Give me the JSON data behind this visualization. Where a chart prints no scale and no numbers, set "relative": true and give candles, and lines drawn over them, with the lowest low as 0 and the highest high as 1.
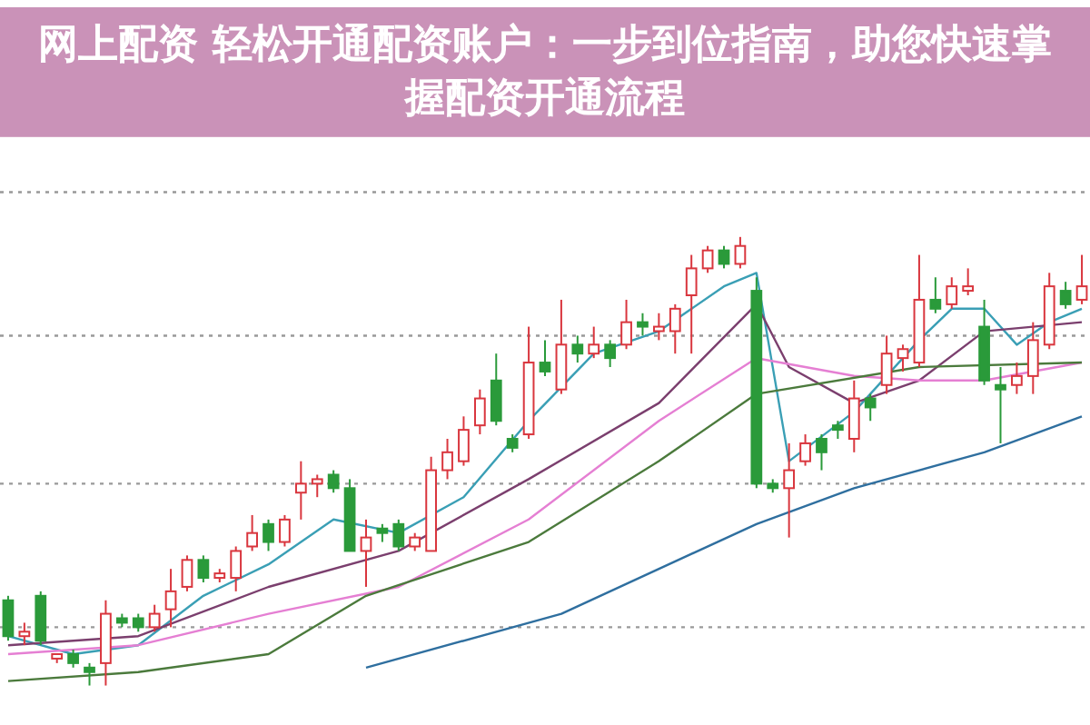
{
  "chart_data": {
    "type": "candlestick",
    "relative": true,
    "title": "网上配资 轻松开通配资账户：一步到位指南，助您快速掌握配资开通流程",
    "categories": [
      null,
      null,
      null,
      null,
      null,
      null,
      null,
      null,
      null,
      null,
      null,
      null,
      null,
      null,
      null,
      null,
      null,
      null,
      null,
      null,
      null,
      null,
      null,
      null,
      null,
      null,
      null,
      null,
      null,
      null,
      null,
      null,
      null,
      null,
      null,
      null,
      null,
      null,
      null,
      null,
      null,
      null,
      null,
      null,
      null,
      null,
      null,
      null,
      null,
      null,
      null,
      null,
      null,
      null,
      null,
      null,
      null,
      null,
      null,
      null,
      null,
      null,
      null,
      null,
      null,
      null,
      null
    ],
    "ohlc": [
      [
        0.19,
        0.2,
        0.1,
        0.11
      ],
      [
        0.11,
        0.14,
        0.09,
        0.12
      ],
      [
        0.2,
        0.21,
        0.09,
        0.1
      ],
      [
        0.06,
        0.07,
        0.05,
        0.07
      ],
      [
        0.07,
        0.08,
        0.04,
        0.05
      ],
      [
        0.04,
        0.05,
        0.0,
        0.03
      ],
      [
        0.05,
        0.19,
        0.0,
        0.16
      ],
      [
        0.15,
        0.16,
        0.13,
        0.14
      ],
      [
        0.15,
        0.16,
        0.12,
        0.13
      ],
      [
        0.13,
        0.18,
        0.12,
        0.16
      ],
      [
        0.17,
        0.26,
        0.13,
        0.21
      ],
      [
        0.22,
        0.29,
        0.21,
        0.28
      ],
      [
        0.28,
        0.29,
        0.23,
        0.24
      ],
      [
        0.24,
        0.26,
        0.23,
        0.25
      ],
      [
        0.24,
        0.31,
        0.21,
        0.3
      ],
      [
        0.31,
        0.38,
        0.3,
        0.34
      ],
      [
        0.36,
        0.37,
        0.3,
        0.32
      ],
      [
        0.32,
        0.38,
        0.31,
        0.37
      ],
      [
        0.43,
        0.5,
        0.37,
        0.45
      ],
      [
        0.45,
        0.47,
        0.42,
        0.46
      ],
      [
        0.47,
        0.48,
        0.43,
        0.44
      ],
      [
        0.44,
        0.46,
        0.3,
        0.3
      ],
      [
        0.3,
        0.37,
        0.22,
        0.33
      ],
      [
        0.35,
        0.36,
        0.32,
        0.34
      ],
      [
        0.36,
        0.37,
        0.3,
        0.31
      ],
      [
        0.31,
        0.34,
        0.3,
        0.33
      ],
      [
        0.3,
        0.51,
        0.3,
        0.48
      ],
      [
        0.48,
        0.55,
        0.46,
        0.52
      ],
      [
        0.5,
        0.6,
        0.49,
        0.57
      ],
      [
        0.58,
        0.66,
        0.56,
        0.64
      ],
      [
        0.68,
        0.74,
        0.58,
        0.59
      ],
      [
        0.55,
        0.56,
        0.52,
        0.53
      ],
      [
        0.56,
        0.8,
        0.55,
        0.72
      ],
      [
        0.72,
        0.77,
        0.69,
        0.7
      ],
      [
        0.66,
        0.86,
        0.65,
        0.76
      ],
      [
        0.76,
        0.78,
        0.72,
        0.74
      ],
      [
        0.74,
        0.8,
        0.73,
        0.76
      ],
      [
        0.76,
        0.77,
        0.71,
        0.73
      ],
      [
        0.76,
        0.86,
        0.75,
        0.81
      ],
      [
        0.81,
        0.83,
        0.78,
        0.8
      ],
      [
        0.79,
        0.83,
        0.77,
        0.8
      ],
      [
        0.79,
        0.85,
        0.74,
        0.84
      ],
      [
        0.87,
        0.96,
        0.74,
        0.93
      ],
      [
        0.93,
        0.98,
        0.92,
        0.97
      ],
      [
        0.97,
        0.98,
        0.93,
        0.94
      ],
      [
        0.94,
        1.0,
        0.93,
        0.98
      ],
      [
        0.88,
        0.91,
        0.44,
        0.45
      ],
      [
        0.45,
        0.46,
        0.43,
        0.44
      ],
      [
        0.44,
        0.54,
        0.33,
        0.48
      ],
      [
        0.5,
        0.56,
        0.49,
        0.54
      ],
      [
        0.55,
        0.56,
        0.48,
        0.52
      ],
      [
        0.58,
        0.59,
        0.55,
        0.57
      ],
      [
        0.55,
        0.68,
        0.52,
        0.64
      ],
      [
        0.64,
        0.65,
        0.59,
        0.62
      ],
      [
        0.67,
        0.78,
        0.65,
        0.74
      ],
      [
        0.73,
        0.76,
        0.7,
        0.75
      ],
      [
        0.72,
        0.96,
        0.71,
        0.86
      ],
      [
        0.86,
        0.91,
        0.83,
        0.84
      ],
      [
        0.85,
        0.91,
        0.84,
        0.89
      ],
      [
        0.88,
        0.93,
        0.87,
        0.89
      ],
      [
        0.8,
        0.86,
        0.67,
        0.68
      ],
      [
        0.67,
        0.71,
        0.54,
        0.66
      ],
      [
        0.67,
        0.72,
        0.65,
        0.69
      ],
      [
        0.69,
        0.81,
        0.65,
        0.77
      ],
      [
        0.76,
        0.92,
        0.75,
        0.89
      ],
      [
        0.88,
        0.9,
        0.84,
        0.85
      ],
      [
        0.86,
        0.96,
        0.85,
        0.89
      ]
    ],
    "colors": [
      "#2a9a3a",
      "#d9363e",
      "#2a9a3a",
      "#d9363e",
      "#2a9a3a",
      "#2a9a3a",
      "#d9363e",
      "#2a9a3a",
      "#2a9a3a",
      "#d9363e",
      "#d9363e",
      "#d9363e",
      "#2a9a3a",
      "#d9363e",
      "#d9363e",
      "#d9363e",
      "#2a9a3a",
      "#d9363e",
      "#d9363e",
      "#d9363e",
      "#2a9a3a",
      "#2a9a3a",
      "#d9363e",
      "#2a9a3a",
      "#2a9a3a",
      "#d9363e",
      "#d9363e",
      "#d9363e",
      "#d9363e",
      "#d9363e",
      "#2a9a3a",
      "#2a9a3a",
      "#d9363e",
      "#2a9a3a",
      "#d9363e",
      "#2a9a3a",
      "#d9363e",
      "#2a9a3a",
      "#d9363e",
      "#2a9a3a",
      "#d9363e",
      "#d9363e",
      "#d9363e",
      "#d9363e",
      "#2a9a3a",
      "#d9363e",
      "#2a9a3a",
      "#2a9a3a",
      "#d9363e",
      "#d9363e",
      "#2a9a3a",
      "#2a9a3a",
      "#d9363e",
      "#2a9a3a",
      "#d9363e",
      "#d9363e",
      "#d9363e",
      "#2a9a3a",
      "#d9363e",
      "#d9363e",
      "#2a9a3a",
      "#2a9a3a",
      "#d9363e",
      "#d9363e",
      "#d9363e",
      "#2a9a3a",
      "#d9363e"
    ],
    "series": [
      {
        "type": "line",
        "color": "#3a9fb5",
        "values": [
          0.11,
          null,
          null,
          null,
          0.07,
          null,
          null,
          null,
          0.09,
          null,
          null,
          null,
          0.2,
          null,
          null,
          null,
          0.27,
          null,
          null,
          null,
          0.37,
          null,
          null,
          null,
          0.34,
          null,
          null,
          null,
          0.42,
          null,
          null,
          null,
          0.59,
          null,
          null,
          null,
          0.74,
          null,
          null,
          null,
          0.79,
          null,
          null,
          null,
          0.89,
          null,
          0.92,
          null,
          0.5,
          null,
          null,
          null,
          0.61,
          null,
          null,
          null,
          0.77,
          null,
          0.84,
          null,
          0.84,
          null,
          0.76,
          null,
          0.81,
          null,
          0.84
        ]
      },
      {
        "type": "line",
        "color": "#7b3f6e",
        "values": [
          0.09,
          null,
          null,
          null,
          null,
          null,
          null,
          null,
          0.11,
          null,
          null,
          null,
          null,
          null,
          null,
          null,
          0.22,
          null,
          null,
          null,
          null,
          null,
          null,
          null,
          0.3,
          null,
          null,
          null,
          null,
          null,
          null,
          null,
          0.46,
          null,
          null,
          null,
          null,
          null,
          null,
          null,
          0.63,
          null,
          null,
          null,
          null,
          null,
          0.85,
          null,
          0.71,
          null,
          null,
          null,
          0.63,
          null,
          null,
          null,
          0.68,
          null,
          null,
          null,
          0.79,
          null,
          null,
          null,
          null,
          null,
          0.81
        ]
      },
      {
        "type": "line",
        "color": "#e57fd3",
        "values": [
          0.07,
          null,
          null,
          null,
          null,
          null,
          null,
          null,
          0.09,
          null,
          null,
          null,
          null,
          null,
          null,
          null,
          0.16,
          null,
          null,
          null,
          null,
          null,
          null,
          null,
          0.22,
          null,
          null,
          null,
          null,
          null,
          null,
          null,
          0.37,
          null,
          null,
          null,
          null,
          null,
          null,
          null,
          0.59,
          null,
          null,
          null,
          null,
          null,
          0.73,
          null,
          null,
          null,
          null,
          null,
          0.69,
          null,
          null,
          null,
          0.68,
          null,
          null,
          null,
          0.68,
          null,
          null,
          null,
          null,
          null,
          0.72
        ]
      },
      {
        "type": "line",
        "color": "#4b7a3c",
        "values": [
          0.01,
          null,
          null,
          null,
          null,
          null,
          null,
          null,
          0.03,
          null,
          null,
          null,
          null,
          null,
          null,
          null,
          0.07,
          null,
          null,
          null,
          null,
          null,
          0.2,
          null,
          null,
          null,
          null,
          null,
          null,
          null,
          null,
          null,
          0.32,
          null,
          null,
          null,
          null,
          null,
          null,
          null,
          0.5,
          null,
          null,
          null,
          null,
          null,
          0.65,
          null,
          null,
          null,
          null,
          null,
          null,
          null,
          null,
          null,
          0.71,
          null,
          null,
          null,
          null,
          null,
          null,
          null,
          null,
          null,
          0.72
        ]
      },
      {
        "type": "line",
        "color": "#2f6f9f",
        "values": [
          null,
          null,
          null,
          null,
          null,
          null,
          null,
          null,
          null,
          null,
          null,
          null,
          null,
          null,
          null,
          null,
          null,
          null,
          null,
          null,
          null,
          null,
          0.04,
          null,
          null,
          null,
          null,
          null,
          null,
          null,
          null,
          null,
          null,
          null,
          0.16,
          null,
          null,
          null,
          null,
          null,
          null,
          null,
          null,
          null,
          null,
          null,
          0.36,
          null,
          null,
          null,
          null,
          null,
          0.44,
          null,
          null,
          null,
          null,
          null,
          null,
          null,
          0.52,
          null,
          null,
          null,
          null,
          null,
          0.6
        ]
      }
    ],
    "ref_lines": [
      {
        "axis": "y",
        "value": 1.1,
        "color": "#999999",
        "line_style": "dotted"
      },
      {
        "axis": "y",
        "value": 0.78,
        "color": "#999999",
        "line_style": "dotted"
      },
      {
        "axis": "y",
        "value": 0.45,
        "color": "#999999",
        "line_style": "dotted"
      },
      {
        "axis": "y",
        "value": 0.13,
        "color": "#999999",
        "line_style": "dotted"
      }
    ]
  }
}
